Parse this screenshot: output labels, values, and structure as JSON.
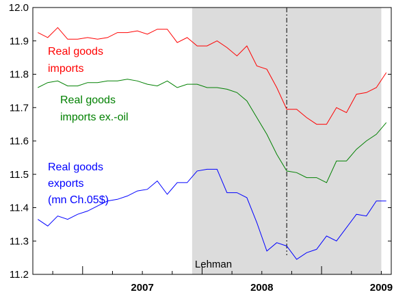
{
  "chart_data": {
    "type": "line",
    "title": "",
    "xlabel": "",
    "ylabel": "",
    "x_start": "2006-08",
    "x_end": "2009-07",
    "x_tick_labels": [
      "2007",
      "2008",
      "2009"
    ],
    "ylim": [
      11.2,
      12.0
    ],
    "y_ticks": [
      "11.2",
      "11.3",
      "11.4",
      "11.5",
      "11.6",
      "11.7",
      "11.8",
      "11.9",
      "12.0"
    ],
    "recession_shading": {
      "start": "2007-12",
      "end": "2009-06"
    },
    "event_line": {
      "date": "2008-09",
      "label": "Lehman"
    },
    "series": [
      {
        "name": "Real goods imports",
        "color": "#ff0000",
        "label_lines": [
          "Real goods",
          "imports"
        ],
        "values": [
          11.925,
          11.91,
          11.94,
          11.905,
          11.905,
          11.91,
          11.905,
          11.91,
          11.925,
          11.925,
          11.93,
          11.92,
          11.935,
          11.935,
          11.895,
          11.91,
          11.885,
          11.885,
          11.9,
          11.88,
          11.855,
          11.885,
          11.825,
          11.815,
          11.76,
          11.695,
          11.695,
          11.67,
          11.65,
          11.65,
          11.7,
          11.685,
          11.74,
          11.745,
          11.76,
          11.805
        ]
      },
      {
        "name": "Real goods imports ex.-oil",
        "color": "#008000",
        "label_lines": [
          "Real goods",
          "imports ex.-oil"
        ],
        "values": [
          11.76,
          11.775,
          11.78,
          11.765,
          11.765,
          11.775,
          11.775,
          11.78,
          11.78,
          11.785,
          11.78,
          11.77,
          11.765,
          11.78,
          11.76,
          11.77,
          11.77,
          11.76,
          11.76,
          11.755,
          11.745,
          11.72,
          11.67,
          11.62,
          11.56,
          11.51,
          11.505,
          11.49,
          11.49,
          11.475,
          11.54,
          11.54,
          11.575,
          11.6,
          11.62,
          11.655
        ]
      },
      {
        "name": "Real goods exports (mn Ch.05$)",
        "color": "#0000ff",
        "label_lines": [
          "Real goods",
          "exports",
          "(mn Ch.05$)"
        ],
        "values": [
          11.365,
          11.345,
          11.375,
          11.365,
          11.38,
          11.39,
          11.405,
          11.42,
          11.425,
          11.435,
          11.45,
          11.455,
          11.48,
          11.44,
          11.475,
          11.475,
          11.51,
          11.515,
          11.515,
          11.445,
          11.445,
          11.43,
          11.355,
          11.27,
          11.295,
          11.285,
          11.245,
          11.265,
          11.275,
          11.315,
          11.3,
          11.34,
          11.38,
          11.375,
          11.42,
          11.42
        ]
      }
    ]
  }
}
